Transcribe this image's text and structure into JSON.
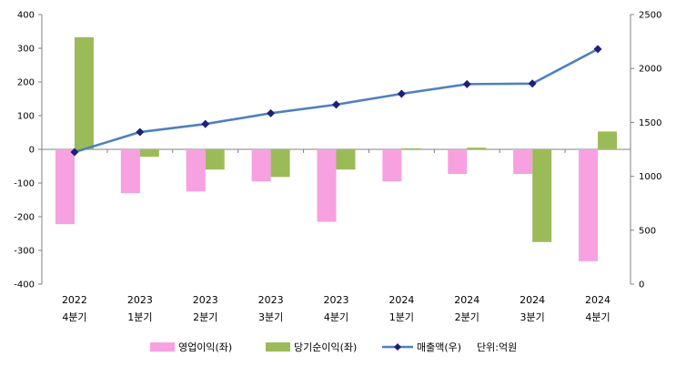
{
  "chart_data": {
    "type": "bar",
    "categories": [
      [
        "2022",
        "4분기"
      ],
      [
        "2023",
        "1분기"
      ],
      [
        "2023",
        "2분기"
      ],
      [
        "2023",
        "3분기"
      ],
      [
        "2023",
        "4분기"
      ],
      [
        "2024",
        "1분기"
      ],
      [
        "2024",
        "2분기"
      ],
      [
        "2024",
        "3분기"
      ],
      [
        "2024",
        "4분기"
      ]
    ],
    "y_left": {
      "min": -400,
      "max": 400,
      "step": 100,
      "ticks": [
        "400",
        "300",
        "200",
        "100",
        "0",
        "-100",
        "-200",
        "-300",
        "-400"
      ]
    },
    "y_right": {
      "min": 0,
      "max": 2500,
      "step": 500,
      "ticks": [
        "2500",
        "2000",
        "1500",
        "1000",
        "500",
        "0"
      ]
    },
    "series": [
      {
        "name": "영업이익(좌)",
        "type": "bar",
        "axis": "left",
        "color": "#f7a1e0",
        "values": [
          -222,
          -130,
          -125,
          -95,
          -215,
          -95,
          -73,
          -73,
          -332
        ]
      },
      {
        "name": "당기순이익(좌)",
        "type": "bar",
        "axis": "left",
        "color": "#9bbb59",
        "values": [
          333,
          -22,
          -60,
          -82,
          -60,
          3,
          5,
          -275,
          53
        ]
      },
      {
        "name": "매출액(우)",
        "type": "line",
        "axis": "right",
        "color": "#4f81bd",
        "marker_color": "#1f1f7a",
        "values": [
          1225,
          1410,
          1485,
          1585,
          1665,
          1765,
          1855,
          1860,
          2180
        ]
      }
    ],
    "unit_note": "단위:억원",
    "legend_position": "bottom",
    "grid": false
  }
}
